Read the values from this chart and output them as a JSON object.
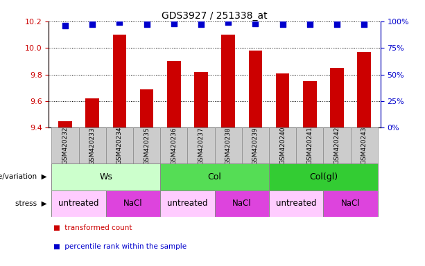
{
  "title": "GDS3927 / 251338_at",
  "samples": [
    "GSM420232",
    "GSM420233",
    "GSM420234",
    "GSM420235",
    "GSM420236",
    "GSM420237",
    "GSM420238",
    "GSM420239",
    "GSM420240",
    "GSM420241",
    "GSM420242",
    "GSM420243"
  ],
  "transformed_count": [
    9.45,
    9.62,
    10.1,
    9.69,
    9.9,
    9.82,
    10.1,
    9.98,
    9.81,
    9.75,
    9.85,
    9.97
  ],
  "percentile_rank": [
    96,
    97,
    99,
    97,
    98,
    97,
    99,
    98,
    97,
    97,
    97,
    97
  ],
  "bar_color": "#cc0000",
  "dot_color": "#0000cc",
  "ylim_left": [
    9.4,
    10.2
  ],
  "ylim_right": [
    0,
    100
  ],
  "yticks_left": [
    9.4,
    9.6,
    9.8,
    10.0,
    10.2
  ],
  "yticks_right": [
    0,
    25,
    50,
    75,
    100
  ],
  "ytick_labels_right": [
    "0%",
    "25%",
    "50%",
    "75%",
    "100%"
  ],
  "genotype_groups": [
    {
      "label": "Ws",
      "start": 0,
      "end": 4,
      "color": "#ccffcc"
    },
    {
      "label": "Col",
      "start": 4,
      "end": 8,
      "color": "#55dd55"
    },
    {
      "label": "Col(gl)",
      "start": 8,
      "end": 12,
      "color": "#33cc33"
    }
  ],
  "stress_groups": [
    {
      "label": "untreated",
      "start": 0,
      "end": 2,
      "color": "#ffccff"
    },
    {
      "label": "NaCl",
      "start": 2,
      "end": 4,
      "color": "#dd44dd"
    },
    {
      "label": "untreated",
      "start": 4,
      "end": 6,
      "color": "#ffccff"
    },
    {
      "label": "NaCl",
      "start": 6,
      "end": 8,
      "color": "#dd44dd"
    },
    {
      "label": "untreated",
      "start": 8,
      "end": 10,
      "color": "#ffccff"
    },
    {
      "label": "NaCl",
      "start": 10,
      "end": 12,
      "color": "#dd44dd"
    }
  ],
  "legend_red_label": "transformed count",
  "legend_blue_label": "percentile rank within the sample",
  "genotype_label": "genotype/variation",
  "stress_label": "stress",
  "bar_color_legend": "#cc0000",
  "dot_color_legend": "#0000cc",
  "grid_color": "#888888",
  "tick_color_left": "#cc0000",
  "tick_color_right": "#0000cc",
  "bar_width": 0.5,
  "dot_size": 30,
  "sample_bg": "#cccccc",
  "sample_border": "#888888"
}
